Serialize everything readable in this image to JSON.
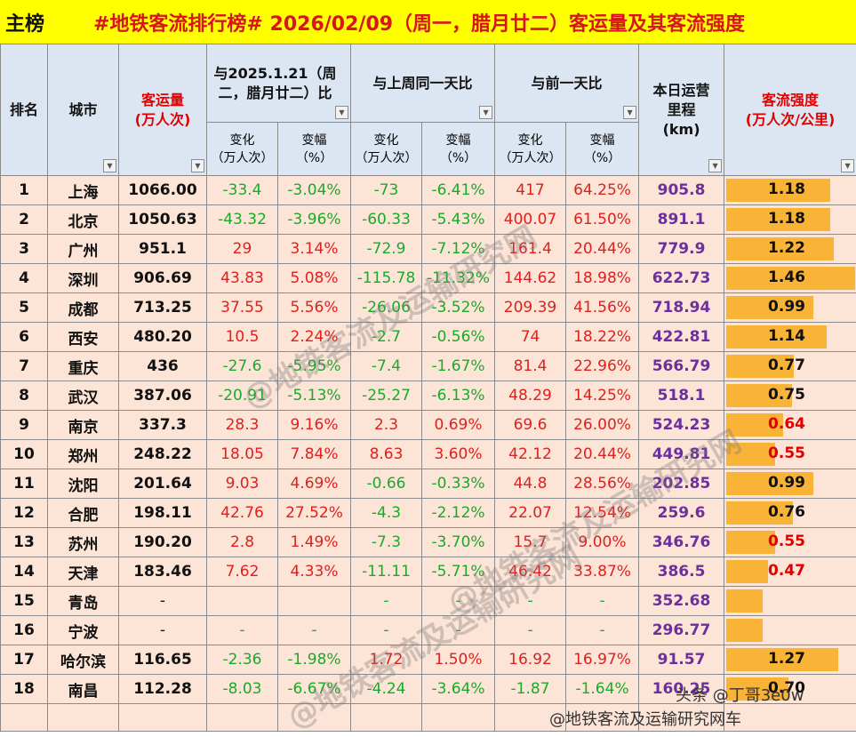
{
  "header": {
    "tag": "主榜",
    "title": "#地铁客流排行榜# 2026/02/09（周一，腊月廿二）客运量及其客流强度"
  },
  "columns": {
    "rank": "排名",
    "city": "城市",
    "pax": "客运量\n(万人次)",
    "cmp_ly": "与2025.1.21（周二，腊月廿二）比",
    "cmp_wk": "与上周同一天比",
    "cmp_prev": "与前一天比",
    "mileage": "本日运营\n里程\n(km)",
    "intensity": "客流强度\n(万人次/公里)",
    "change": "变化\n（万人次）",
    "rate": "变幅\n（%）"
  },
  "rows": [
    {
      "rank": "1",
      "city": "上海",
      "pax": "1066.00",
      "ly_c": "-33.4",
      "ly_r": "-3.04%",
      "wk_c": "-73",
      "wk_r": "-6.41%",
      "pv_c": "417",
      "pv_r": "64.25%",
      "mile": "905.8",
      "intensity": "1.18",
      "iv": 1.18
    },
    {
      "rank": "2",
      "city": "北京",
      "pax": "1050.63",
      "ly_c": "-43.32",
      "ly_r": "-3.96%",
      "wk_c": "-60.33",
      "wk_r": "-5.43%",
      "pv_c": "400.07",
      "pv_r": "61.50%",
      "mile": "891.1",
      "intensity": "1.18",
      "iv": 1.18
    },
    {
      "rank": "3",
      "city": "广州",
      "pax": "951.1",
      "ly_c": "29",
      "ly_r": "3.14%",
      "wk_c": "-72.9",
      "wk_r": "-7.12%",
      "pv_c": "161.4",
      "pv_r": "20.44%",
      "mile": "779.9",
      "intensity": "1.22",
      "iv": 1.22
    },
    {
      "rank": "4",
      "city": "深圳",
      "pax": "906.69",
      "ly_c": "43.83",
      "ly_r": "5.08%",
      "wk_c": "-115.78",
      "wk_r": "-11.32%",
      "pv_c": "144.62",
      "pv_r": "18.98%",
      "mile": "622.73",
      "intensity": "1.46",
      "iv": 1.46
    },
    {
      "rank": "5",
      "city": "成都",
      "pax": "713.25",
      "ly_c": "37.55",
      "ly_r": "5.56%",
      "wk_c": "-26.06",
      "wk_r": "-3.52%",
      "pv_c": "209.39",
      "pv_r": "41.56%",
      "mile": "718.94",
      "intensity": "0.99",
      "iv": 0.99
    },
    {
      "rank": "6",
      "city": "西安",
      "pax": "480.20",
      "ly_c": "10.5",
      "ly_r": "2.24%",
      "wk_c": "-2.7",
      "wk_r": "-0.56%",
      "pv_c": "74",
      "pv_r": "18.22%",
      "mile": "422.81",
      "intensity": "1.14",
      "iv": 1.14
    },
    {
      "rank": "7",
      "city": "重庆",
      "pax": "436",
      "ly_c": "-27.6",
      "ly_r": "-5.95%",
      "wk_c": "-7.4",
      "wk_r": "-1.67%",
      "pv_c": "81.4",
      "pv_r": "22.96%",
      "mile": "566.79",
      "intensity": "0.77",
      "iv": 0.77
    },
    {
      "rank": "8",
      "city": "武汉",
      "pax": "387.06",
      "ly_c": "-20.91",
      "ly_r": "-5.13%",
      "wk_c": "-25.27",
      "wk_r": "-6.13%",
      "pv_c": "48.29",
      "pv_r": "14.25%",
      "mile": "518.1",
      "intensity": "0.75",
      "iv": 0.75
    },
    {
      "rank": "9",
      "city": "南京",
      "pax": "337.3",
      "ly_c": "28.3",
      "ly_r": "9.16%",
      "wk_c": "2.3",
      "wk_r": "0.69%",
      "pv_c": "69.6",
      "pv_r": "26.00%",
      "mile": "524.23",
      "intensity": "0.64",
      "iv": 0.64
    },
    {
      "rank": "10",
      "city": "郑州",
      "pax": "248.22",
      "ly_c": "18.05",
      "ly_r": "7.84%",
      "wk_c": "8.63",
      "wk_r": "3.60%",
      "pv_c": "42.12",
      "pv_r": "20.44%",
      "mile": "449.81",
      "intensity": "0.55",
      "iv": 0.55
    },
    {
      "rank": "11",
      "city": "沈阳",
      "pax": "201.64",
      "ly_c": "9.03",
      "ly_r": "4.69%",
      "wk_c": "-0.66",
      "wk_r": "-0.33%",
      "pv_c": "44.8",
      "pv_r": "28.56%",
      "mile": "202.85",
      "intensity": "0.99",
      "iv": 0.99
    },
    {
      "rank": "12",
      "city": "合肥",
      "pax": "198.11",
      "ly_c": "42.76",
      "ly_r": "27.52%",
      "wk_c": "-4.3",
      "wk_r": "-2.12%",
      "pv_c": "22.07",
      "pv_r": "12.54%",
      "mile": "259.6",
      "intensity": "0.76",
      "iv": 0.76
    },
    {
      "rank": "13",
      "city": "苏州",
      "pax": "190.20",
      "ly_c": "2.8",
      "ly_r": "1.49%",
      "wk_c": "-7.3",
      "wk_r": "-3.70%",
      "pv_c": "15.7",
      "pv_r": "9.00%",
      "mile": "346.76",
      "intensity": "0.55",
      "iv": 0.55
    },
    {
      "rank": "14",
      "city": "天津",
      "pax": "183.46",
      "ly_c": "7.62",
      "ly_r": "4.33%",
      "wk_c": "-11.11",
      "wk_r": "-5.71%",
      "pv_c": "46.42",
      "pv_r": "33.87%",
      "mile": "386.5",
      "intensity": "0.47",
      "iv": 0.47
    },
    {
      "rank": "15",
      "city": "青岛",
      "pax": "-",
      "ly_c": "",
      "ly_r": "",
      "wk_c": "-",
      "wk_r": "-",
      "pv_c": "-",
      "pv_r": "-",
      "mile": "352.68",
      "intensity": "",
      "iv": 0.41
    },
    {
      "rank": "16",
      "city": "宁波",
      "pax": "-",
      "ly_c": "-",
      "ly_r": "-",
      "wk_c": "-",
      "wk_r": "-",
      "pv_c": "-",
      "pv_r": "-",
      "mile": "296.77",
      "intensity": "",
      "iv": 0.41
    },
    {
      "rank": "17",
      "city": "哈尔滨",
      "pax": "116.65",
      "ly_c": "-2.36",
      "ly_r": "-1.98%",
      "wk_c": "1.72",
      "wk_r": "1.50%",
      "pv_c": "16.92",
      "pv_r": "16.97%",
      "mile": "91.57",
      "intensity": "1.27",
      "iv": 1.27
    },
    {
      "rank": "18",
      "city": "南昌",
      "pax": "112.28",
      "ly_c": "-8.03",
      "ly_r": "-6.67%",
      "wk_c": "-4.24",
      "wk_r": "-3.64%",
      "pv_c": "-1.87",
      "pv_r": "-1.64%",
      "mile": "160.25",
      "intensity": "0.70",
      "iv": 0.7
    }
  ],
  "bar_max": 1.46,
  "watermarks": {
    "wm1": "@地铁客流及运输研究网",
    "wm2": "@地铁客流及运输研究网",
    "wm3": "@地铁客流及运输研究网",
    "foot1": "头条 @丁哥3e0w",
    "foot2": "@地铁客流及运输研究网车"
  },
  "colors": {
    "title": "#d8141d",
    "banner": "#ffff00",
    "header": "#dce6f2",
    "row": "#fce4d6",
    "bar": "#f9b337",
    "up": "#e0201e",
    "down": "#1aaa2b",
    "mileage": "#6d2fa0"
  }
}
